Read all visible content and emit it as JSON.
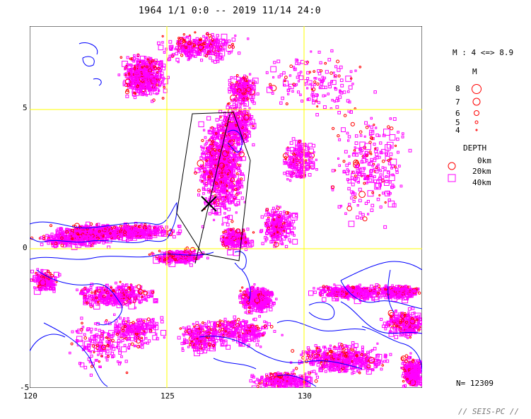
{
  "header": {
    "title": "1964 1/1 0:0 -- 2019 11/14 24:0"
  },
  "map": {
    "lon_range": [
      120,
      134.3
    ],
    "lat_range": [
      -5,
      8
    ],
    "x_ticks": [
      "120",
      "125",
      "130"
    ],
    "y_ticks": [
      "5",
      "0",
      "-5"
    ],
    "gridline_color": "#ffff00",
    "coastline_color": "#0000ff",
    "shallow_event_color": "#ff0000",
    "deep_event_color": "#ff00ff",
    "epicenter_marker_lonlat": [
      126.4,
      1.6
    ]
  },
  "legend": {
    "magnitude_range": "M : 4 <=> 8.9",
    "magnitude_title": "M",
    "magnitudes": [
      "8",
      "7",
      "6",
      "5",
      "4"
    ],
    "depth_title": "DEPTH",
    "depths": [
      "0km",
      "20km",
      "40km"
    ]
  },
  "footer": {
    "count": "N= 12309",
    "brand": "// SEIS-PC //"
  }
}
